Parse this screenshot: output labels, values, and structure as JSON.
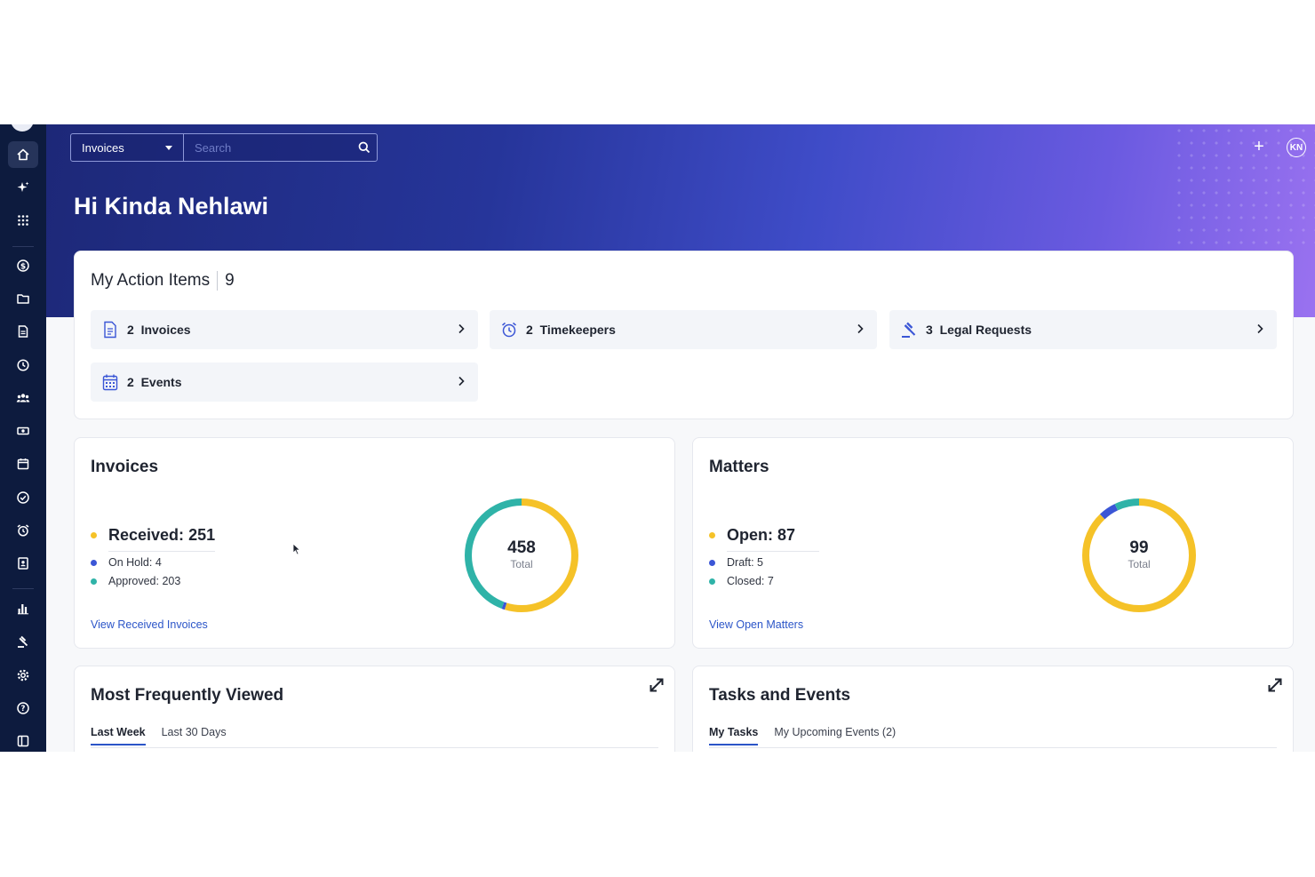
{
  "search": {
    "category": "Invoices",
    "placeholder": "Search"
  },
  "header": {
    "avatar_initials": "KN",
    "greeting": "Hi Kinda Nehlawi"
  },
  "action_items": {
    "title": "My Action Items",
    "count": "9",
    "items": [
      {
        "icon": "invoice-doc-icon",
        "label": "2  Invoices"
      },
      {
        "icon": "alarm-clock-icon",
        "label": "2  Timekeepers"
      },
      {
        "icon": "gavel-icon",
        "label": "3  Legal Requests"
      },
      {
        "icon": "calendar-icon",
        "label": "2  Events"
      }
    ]
  },
  "invoices": {
    "title": "Invoices",
    "main_label": "Received:",
    "main_value": "251",
    "sub": [
      {
        "label": "On Hold:",
        "value": "4"
      },
      {
        "label": "Approved:",
        "value": "203"
      }
    ],
    "total": "458",
    "total_label": "Total",
    "link": "View Received Invoices",
    "segments": [
      {
        "name": "Received",
        "value": 251,
        "color": "#f5c228"
      },
      {
        "name": "On Hold",
        "value": 4,
        "color": "#3b56d6"
      },
      {
        "name": "Approved",
        "value": 203,
        "color": "#2fb3a8"
      }
    ]
  },
  "matters": {
    "title": "Matters",
    "main_label": "Open:",
    "main_value": "87",
    "sub": [
      {
        "label": "Draft:",
        "value": "5"
      },
      {
        "label": "Closed:",
        "value": "7"
      }
    ],
    "total": "99",
    "total_label": "Total",
    "link": "View Open Matters",
    "segments": [
      {
        "name": "Open",
        "value": 87,
        "color": "#f5c228"
      },
      {
        "name": "Draft",
        "value": 5,
        "color": "#3b56d6"
      },
      {
        "name": "Closed",
        "value": 7,
        "color": "#2fb3a8"
      }
    ]
  },
  "most_viewed": {
    "title": "Most Frequently Viewed",
    "tabs": [
      "Last Week",
      "Last 30 Days"
    ]
  },
  "tasks_events": {
    "title": "Tasks and Events",
    "tabs": [
      "My Tasks",
      "My Upcoming Events (2)"
    ]
  },
  "colors": {
    "yellow": "#f5c228",
    "blue": "#3b56d6",
    "teal": "#2fb3a8",
    "link": "#2b55c8",
    "sidebar": "#0d1b3e"
  },
  "sidebar_icons": [
    "home-icon",
    "sparkle-icon",
    "apps-grid-icon",
    "dollar-icon",
    "folder-icon",
    "document-icon",
    "history-icon",
    "people-icon",
    "money-icon",
    "calendar-icon",
    "check-circle-icon",
    "alarm-icon",
    "contacts-icon",
    "bar-chart-icon",
    "gavel-icon",
    "gear-icon",
    "help-icon",
    "panel-toggle-icon"
  ]
}
